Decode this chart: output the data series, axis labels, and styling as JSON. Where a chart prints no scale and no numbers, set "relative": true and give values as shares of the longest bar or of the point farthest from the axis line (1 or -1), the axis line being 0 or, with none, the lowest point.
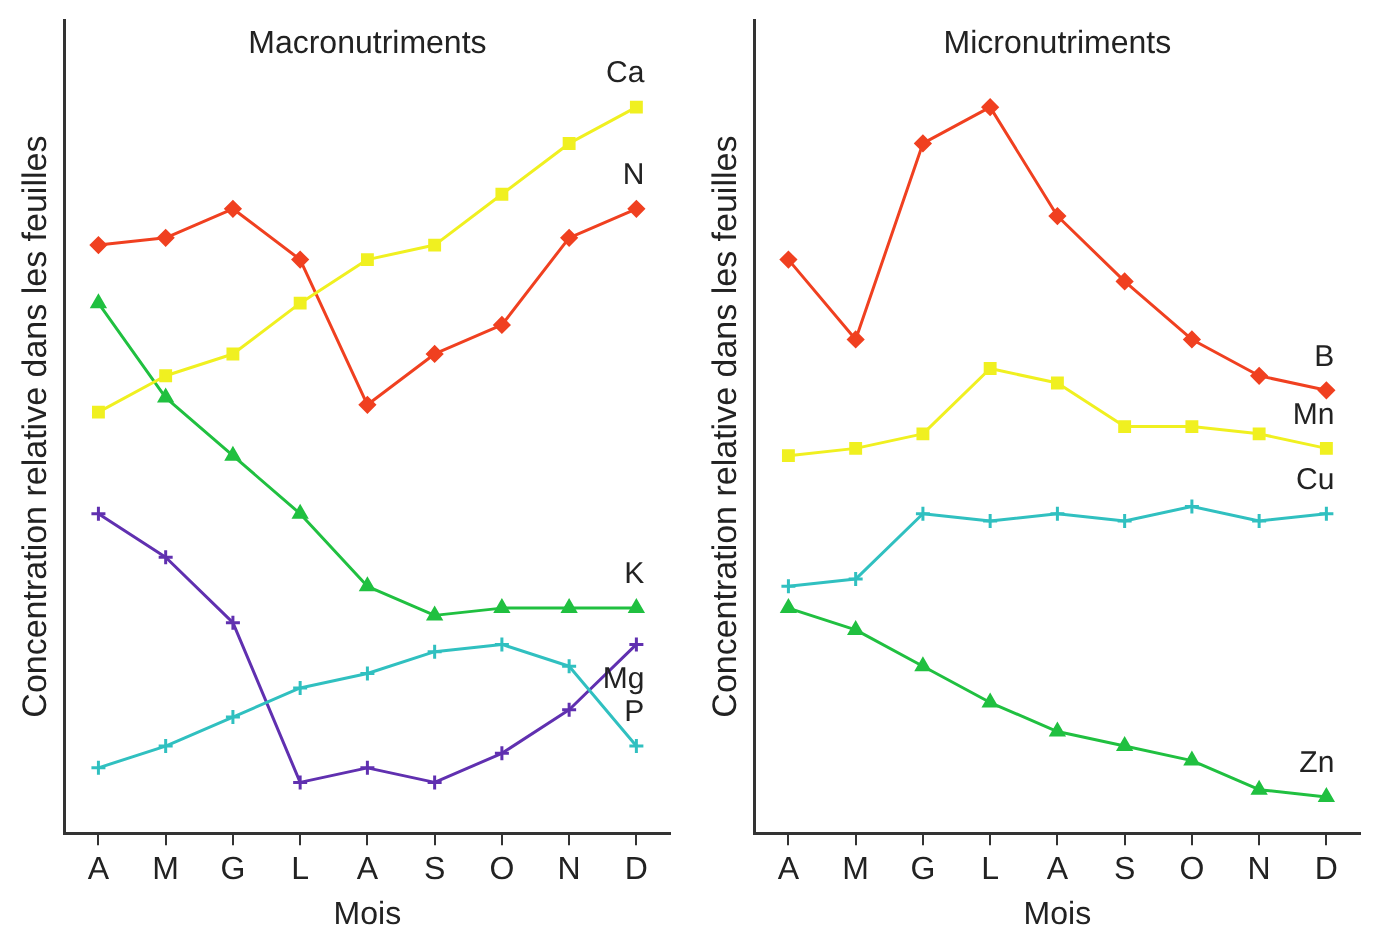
{
  "chart_data": [
    {
      "type": "line",
      "title": "Macronutriments",
      "xlabel": "Mois",
      "ylabel": "Concentration relative dans les feuilles",
      "categories": [
        "A",
        "M",
        "G",
        "L",
        "A",
        "S",
        "O",
        "N",
        "D"
      ],
      "relative": true,
      "legend": false,
      "grid": false,
      "line_style": "solid",
      "series": [
        {
          "name": "Ca",
          "color": "#f0f020",
          "marker": "square",
          "values": [
            0.58,
            0.63,
            0.66,
            0.73,
            0.79,
            0.81,
            0.88,
            0.95,
            1
          ]
        },
        {
          "name": "N",
          "color": "#f04020",
          "marker": "diamond",
          "values": [
            0.81,
            0.82,
            0.86,
            0.79,
            0.59,
            0.66,
            0.7,
            0.82,
            0.86
          ]
        },
        {
          "name": "K",
          "color": "#20c040",
          "marker": "triangle",
          "values": [
            0.73,
            0.6,
            0.52,
            0.44,
            0.34,
            0.3,
            0.31,
            0.31,
            0.31
          ]
        },
        {
          "name": "P",
          "color": "#30c0c0",
          "marker": "cross",
          "values": [
            0.09,
            0.12,
            0.16,
            0.2,
            0.22,
            0.25,
            0.26,
            0.23,
            0.12
          ]
        },
        {
          "name": "Mg",
          "color": "#6030b0",
          "marker": "cross",
          "values": [
            0.44,
            0.38,
            0.29,
            0.07,
            0.09,
            0.07,
            0.11,
            0.17,
            0.26
          ]
        }
      ]
    },
    {
      "type": "line",
      "title": "Micronutriments",
      "xlabel": "Mois",
      "ylabel": "Concentration relative dans les feuilles",
      "categories": [
        "A",
        "M",
        "G",
        "L",
        "A",
        "S",
        "O",
        "N",
        "D"
      ],
      "relative": true,
      "legend": false,
      "grid": false,
      "line_style": "solid",
      "series": [
        {
          "name": "B",
          "color": "#f04020",
          "marker": "diamond",
          "values": [
            0.79,
            0.68,
            0.95,
            1,
            0.85,
            0.76,
            0.68,
            0.63,
            0.61
          ]
        },
        {
          "name": "Mn",
          "color": "#f0f020",
          "marker": "square",
          "values": [
            0.52,
            0.53,
            0.55,
            0.64,
            0.62,
            0.56,
            0.56,
            0.55,
            0.53
          ]
        },
        {
          "name": "Cu",
          "color": "#30c0c0",
          "marker": "cross",
          "values": [
            0.34,
            0.35,
            0.44,
            0.43,
            0.44,
            0.43,
            0.45,
            0.43,
            0.44
          ]
        },
        {
          "name": "Zn",
          "color": "#20c040",
          "marker": "triangle",
          "values": [
            0.31,
            0.28,
            0.23,
            0.18,
            0.14,
            0.12,
            0.1,
            0.06,
            0.05
          ]
        }
      ]
    }
  ]
}
